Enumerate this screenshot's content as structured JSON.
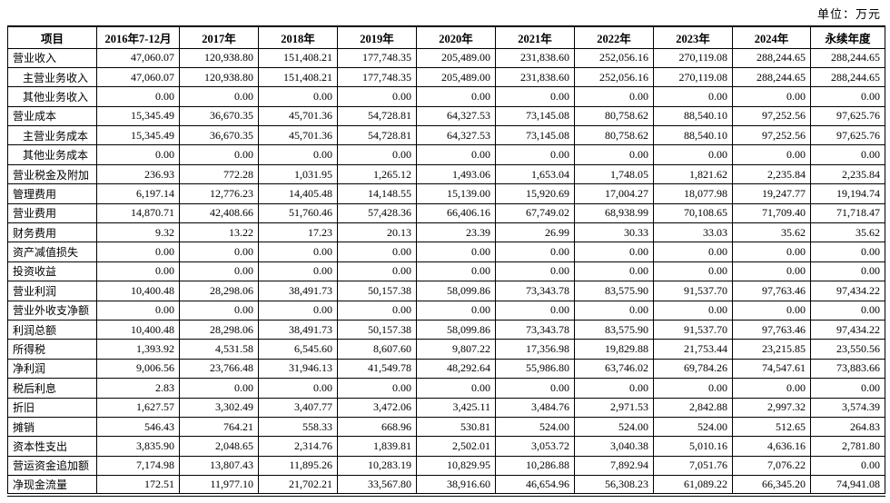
{
  "unit_note": "单位：万元",
  "table": {
    "columns": [
      "项目",
      "2016年7-12月",
      "2017年",
      "2018年",
      "2019年",
      "2020年",
      "2021年",
      "2022年",
      "2023年",
      "2024年",
      "永续年度"
    ],
    "rows": [
      {
        "label": "营业收入",
        "indent": false,
        "values": [
          "47,060.07",
          "120,938.80",
          "151,408.21",
          "177,748.35",
          "205,489.00",
          "231,838.60",
          "252,056.16",
          "270,119.08",
          "288,244.65",
          "288,244.65"
        ]
      },
      {
        "label": "主营业务收入",
        "indent": true,
        "values": [
          "47,060.07",
          "120,938.80",
          "151,408.21",
          "177,748.35",
          "205,489.00",
          "231,838.60",
          "252,056.16",
          "270,119.08",
          "288,244.65",
          "288,244.65"
        ]
      },
      {
        "label": "其他业务收入",
        "indent": true,
        "values": [
          "0.00",
          "0.00",
          "0.00",
          "0.00",
          "0.00",
          "0.00",
          "0.00",
          "0.00",
          "0.00",
          "0.00"
        ]
      },
      {
        "label": "营业成本",
        "indent": false,
        "values": [
          "15,345.49",
          "36,670.35",
          "45,701.36",
          "54,728.81",
          "64,327.53",
          "73,145.08",
          "80,758.62",
          "88,540.10",
          "97,252.56",
          "97,625.76"
        ]
      },
      {
        "label": "主营业务成本",
        "indent": true,
        "values": [
          "15,345.49",
          "36,670.35",
          "45,701.36",
          "54,728.81",
          "64,327.53",
          "73,145.08",
          "80,758.62",
          "88,540.10",
          "97,252.56",
          "97,625.76"
        ]
      },
      {
        "label": "其他业务成本",
        "indent": true,
        "values": [
          "0.00",
          "0.00",
          "0.00",
          "0.00",
          "0.00",
          "0.00",
          "0.00",
          "0.00",
          "0.00",
          "0.00"
        ]
      },
      {
        "label": "营业税金及附加",
        "indent": false,
        "values": [
          "236.93",
          "772.28",
          "1,031.95",
          "1,265.12",
          "1,493.06",
          "1,653.04",
          "1,748.05",
          "1,821.62",
          "2,235.84",
          "2,235.84"
        ]
      },
      {
        "label": "管理费用",
        "indent": false,
        "values": [
          "6,197.14",
          "12,776.23",
          "14,405.48",
          "14,148.55",
          "15,139.00",
          "15,920.69",
          "17,004.27",
          "18,077.98",
          "19,247.77",
          "19,194.74"
        ]
      },
      {
        "label": "营业费用",
        "indent": false,
        "values": [
          "14,870.71",
          "42,408.66",
          "51,760.46",
          "57,428.36",
          "66,406.16",
          "67,749.02",
          "68,938.99",
          "70,108.65",
          "71,709.40",
          "71,718.47"
        ]
      },
      {
        "label": "财务费用",
        "indent": false,
        "values": [
          "9.32",
          "13.22",
          "17.23",
          "20.13",
          "23.39",
          "26.99",
          "30.33",
          "33.03",
          "35.62",
          "35.62"
        ]
      },
      {
        "label": "资产减值损失",
        "indent": false,
        "values": [
          "0.00",
          "0.00",
          "0.00",
          "0.00",
          "0.00",
          "0.00",
          "0.00",
          "0.00",
          "0.00",
          "0.00"
        ]
      },
      {
        "label": "投资收益",
        "indent": false,
        "values": [
          "0.00",
          "0.00",
          "0.00",
          "0.00",
          "0.00",
          "0.00",
          "0.00",
          "0.00",
          "0.00",
          "0.00"
        ]
      },
      {
        "label": "营业利润",
        "indent": false,
        "values": [
          "10,400.48",
          "28,298.06",
          "38,491.73",
          "50,157.38",
          "58,099.86",
          "73,343.78",
          "83,575.90",
          "91,537.70",
          "97,763.46",
          "97,434.22"
        ]
      },
      {
        "label": "营业外收支净额",
        "indent": false,
        "values": [
          "0.00",
          "0.00",
          "0.00",
          "0.00",
          "0.00",
          "0.00",
          "0.00",
          "0.00",
          "0.00",
          "0.00"
        ]
      },
      {
        "label": "利润总额",
        "indent": false,
        "values": [
          "10,400.48",
          "28,298.06",
          "38,491.73",
          "50,157.38",
          "58,099.86",
          "73,343.78",
          "83,575.90",
          "91,537.70",
          "97,763.46",
          "97,434.22"
        ]
      },
      {
        "label": "所得税",
        "indent": false,
        "values": [
          "1,393.92",
          "4,531.58",
          "6,545.60",
          "8,607.60",
          "9,807.22",
          "17,356.98",
          "19,829.88",
          "21,753.44",
          "23,215.85",
          "23,550.56"
        ]
      },
      {
        "label": "净利润",
        "indent": false,
        "values": [
          "9,006.56",
          "23,766.48",
          "31,946.13",
          "41,549.78",
          "48,292.64",
          "55,986.80",
          "63,746.02",
          "69,784.26",
          "74,547.61",
          "73,883.66"
        ]
      },
      {
        "label": "税后利息",
        "indent": false,
        "values": [
          "2.83",
          "0.00",
          "0.00",
          "0.00",
          "0.00",
          "0.00",
          "0.00",
          "0.00",
          "0.00",
          "0.00"
        ]
      },
      {
        "label": "折旧",
        "indent": false,
        "values": [
          "1,627.57",
          "3,302.49",
          "3,407.77",
          "3,472.06",
          "3,425.11",
          "3,484.76",
          "2,971.53",
          "2,842.88",
          "2,997.32",
          "3,574.39"
        ]
      },
      {
        "label": "摊销",
        "indent": false,
        "values": [
          "546.43",
          "764.21",
          "558.33",
          "668.96",
          "530.81",
          "524.00",
          "524.00",
          "524.00",
          "512.65",
          "264.83"
        ]
      },
      {
        "label": "资本性支出",
        "indent": false,
        "values": [
          "3,835.90",
          "2,048.65",
          "2,314.76",
          "1,839.81",
          "2,502.01",
          "3,053.72",
          "3,040.38",
          "5,010.16",
          "4,636.16",
          "2,781.80"
        ]
      },
      {
        "label": "营运资金追加额",
        "indent": false,
        "values": [
          "7,174.98",
          "13,807.43",
          "11,895.26",
          "10,283.19",
          "10,829.95",
          "10,286.88",
          "7,892.94",
          "7,051.76",
          "7,076.22",
          "0.00"
        ]
      },
      {
        "label": "净现金流量",
        "indent": false,
        "values": [
          "172.51",
          "11,977.10",
          "21,702.21",
          "33,567.80",
          "38,916.60",
          "46,654.96",
          "56,308.23",
          "61,089.22",
          "66,345.20",
          "74,941.08"
        ]
      }
    ]
  }
}
